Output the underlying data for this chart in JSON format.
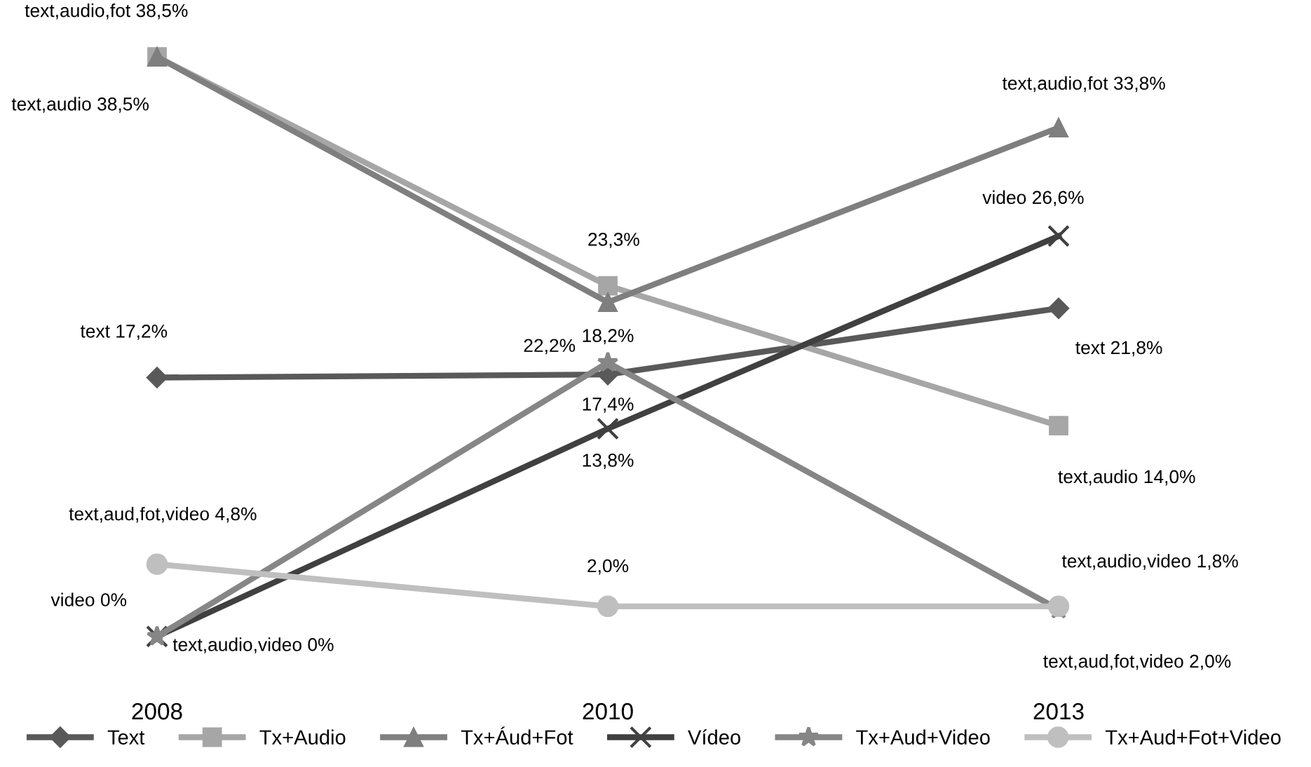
{
  "chart_data": {
    "type": "line",
    "categories": [
      "2008",
      "2010",
      "2013"
    ],
    "legend": "bottom",
    "grid": false,
    "series": [
      {
        "name": "Text",
        "color": "#595959",
        "marker": "diamond",
        "values": [
          17.2,
          17.4,
          21.8
        ],
        "value_labels": [
          "text 17,2%",
          "17,4%",
          "text 21,8%"
        ]
      },
      {
        "name": "Tx+Audio",
        "color": "#a6a6a6",
        "marker": "square",
        "values": [
          38.5,
          23.3,
          14.0
        ],
        "value_labels": [
          "text,audio 38,5%",
          "23,3%",
          "text,audio 14,0%"
        ]
      },
      {
        "name": "Tx+Áud+Fot",
        "color": "#7f7f7f",
        "marker": "triangle",
        "values": [
          38.5,
          22.2,
          33.8
        ],
        "value_labels": [
          "text,audio,fot 38,5%",
          "22,2%",
          "text,audio,fot 33,8%"
        ]
      },
      {
        "name": "Vídeo",
        "color": "#404040",
        "marker": "cross",
        "values": [
          0,
          13.8,
          26.6
        ],
        "value_labels": [
          "video 0%",
          "13,8%",
          "video 26,6%"
        ]
      },
      {
        "name": "Tx+Aud+Video",
        "color": "#868686",
        "marker": "star",
        "values": [
          0,
          18.2,
          1.8
        ],
        "value_labels": [
          "text,audio,video 0%",
          "18,2%",
          "text,audio,video 1,8%"
        ]
      },
      {
        "name": "Tx+Aud+Fot+Video",
        "color": "#bfbfbf",
        "marker": "circle",
        "values": [
          4.8,
          2.0,
          2.0
        ],
        "value_labels": [
          "text,aud,fot,video 4,8%",
          "2,0%",
          "text,aud,fot,video 2,0%"
        ]
      }
    ]
  }
}
